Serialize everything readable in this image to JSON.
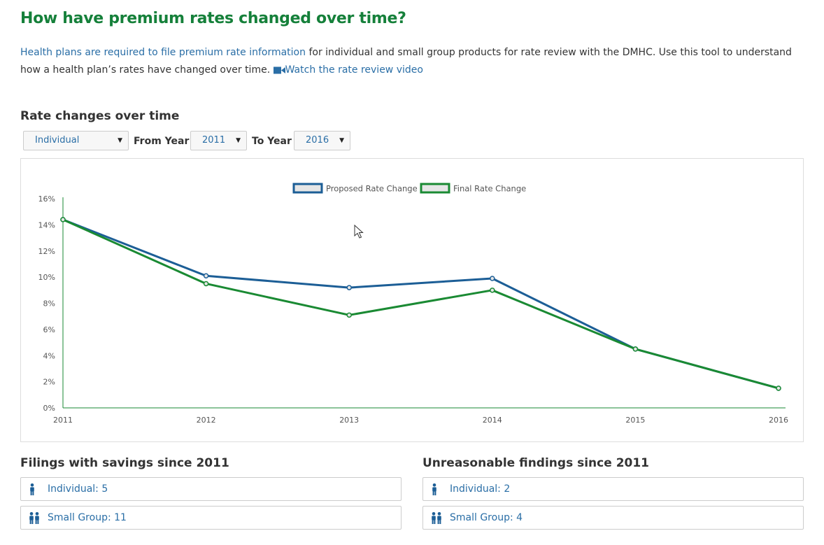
{
  "header": {
    "title": "How have premium rates changed over time?",
    "intro_link": "Health plans are required to file premium rate information",
    "intro_text": " for individual and small group products for rate review with the DMHC. Use this tool to understand how a health plan’s rates have changed over time. ",
    "video_link": "Watch the rate review video"
  },
  "filters": {
    "section_title": "Rate changes over time",
    "product": "Individual",
    "from_label": "From Year",
    "from_year": "2011",
    "to_label": "To Year",
    "to_year": "2016"
  },
  "chart_data": {
    "type": "line",
    "x": [
      "2011",
      "2012",
      "2013",
      "2014",
      "2015",
      "2016"
    ],
    "yticks": [
      "0%",
      "2%",
      "4%",
      "6%",
      "8%",
      "10%",
      "12%",
      "14%",
      "16%"
    ],
    "ylim": [
      0,
      16
    ],
    "legend_position": "top-center",
    "grid": false,
    "series": [
      {
        "name": "Proposed Rate Change",
        "color": "#1c5e96",
        "values": [
          14.4,
          10.1,
          9.2,
          9.9,
          4.5,
          1.5
        ]
      },
      {
        "name": "Final Rate Change",
        "color": "#1a8a33",
        "values": [
          14.4,
          9.5,
          7.1,
          9.0,
          4.5,
          1.5
        ]
      }
    ]
  },
  "savings": {
    "title": "Filings with savings since 2011",
    "individual": "Individual: 5",
    "small_group": "Small Group: 11"
  },
  "unreasonable": {
    "title": "Unreasonable findings since 2011",
    "individual": "Individual: 2",
    "small_group": "Small Group: 4"
  },
  "icons": [
    "person-icon",
    "group-icon",
    "video-camera-icon",
    "chevron-down-icon",
    "mouse-cursor-icon"
  ],
  "colors": {
    "title_green": "#15803a",
    "link_blue": "#2a6ea6"
  }
}
